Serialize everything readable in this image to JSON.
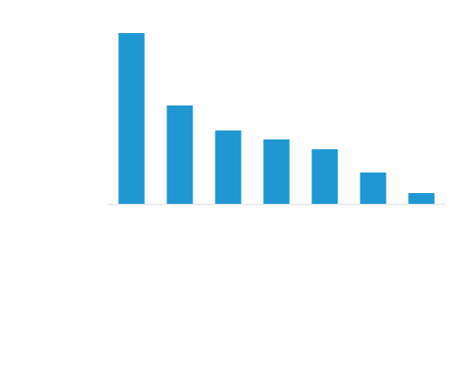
{
  "chart_data": {
    "type": "bar",
    "categories": [
      null,
      null,
      null,
      null,
      null,
      null,
      null
    ],
    "values": [
      191,
      110,
      82,
      72,
      61,
      35,
      12
    ],
    "color": "#1f97d3",
    "ylim": [
      0,
      200
    ]
  }
}
